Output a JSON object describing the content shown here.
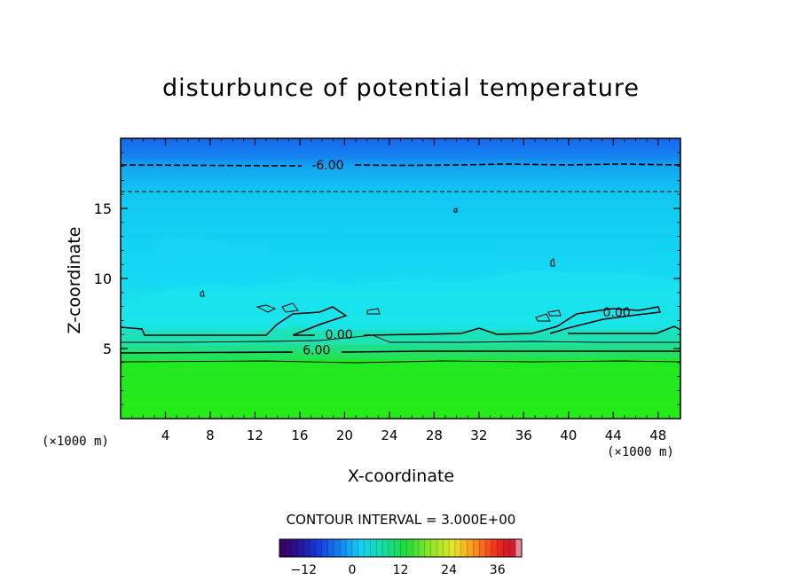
{
  "chart_data": {
    "type": "heatmap",
    "title": "disturbunce of potential temperature",
    "xlabel": "X-coordinate",
    "ylabel": "Z-coordinate",
    "x_unit": "(×1000 m)",
    "xlim": [
      0,
      50
    ],
    "ylim": [
      0,
      20
    ],
    "x_ticks": [
      4,
      8,
      12,
      16,
      20,
      24,
      28,
      32,
      36,
      40,
      44,
      48
    ],
    "y_ticks": [
      5,
      10,
      15
    ],
    "contour_interval_text": "CONTOUR INTERVAL = 3.000E+00",
    "contour_labels": [
      {
        "text": "-6.00",
        "x": 18.5,
        "z": 18.1
      },
      {
        "text": "0.00",
        "x": 19.5,
        "z": 6.0
      },
      {
        "text": "6.00",
        "x": 17.5,
        "z": 4.9
      },
      {
        "text": "0.00",
        "x": 44.3,
        "z": 7.6
      }
    ],
    "layers": [
      {
        "z_range": [
          0,
          4.6
        ],
        "value": "positive (~12)",
        "color": "#22e81a"
      },
      {
        "z_range": [
          4.6,
          6.2
        ],
        "value": "~3 to 6",
        "color": "#1fdc8c"
      },
      {
        "z_range": [
          6.2,
          16.2
        ],
        "value": "~-3 to 0",
        "color": "#14dcf0"
      },
      {
        "z_range": [
          16.2,
          18.2
        ],
        "value": "~-6",
        "color": "#11a8f0"
      },
      {
        "z_range": [
          18.2,
          20
        ],
        "value": "~-9",
        "color": "#1672ee"
      }
    ],
    "colorbar": {
      "range": [
        -18,
        42
      ],
      "ticks": [
        -12,
        0,
        12,
        24,
        36
      ],
      "tick_labels": [
        "−12",
        "0",
        "12",
        "24",
        "36"
      ]
    }
  }
}
